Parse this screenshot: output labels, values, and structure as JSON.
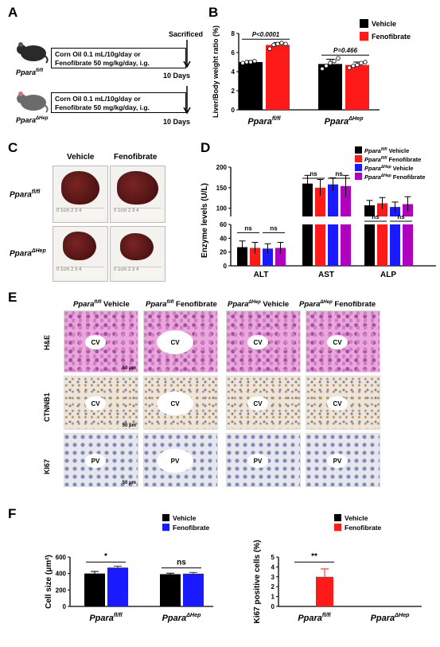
{
  "panels": {
    "A": "A",
    "B": "B",
    "C": "C",
    "D": "D",
    "E": "E",
    "F": "F"
  },
  "panelA": {
    "sacrificed": "Sacrificed",
    "treatment_line1": "Corn Oil 0.1 mL/10g/day or",
    "treatment_line2": "Fenofibrate 50 mg/kg/day, i.g.",
    "days": "10 Days",
    "mouse1": "Ppara",
    "mouse1_sup": "fl/fl",
    "mouse2": "Ppara",
    "mouse2_sup": "ΔHep"
  },
  "colors": {
    "vehicle": "#000000",
    "fenofibrate_red": "#ff1a1a",
    "fenofibrate_blue": "#1a1aff",
    "purple": "#b000c0"
  },
  "chart_data": [
    {
      "id": "B",
      "type": "bar",
      "ylabel": "Liver/Body weight ratio (%)",
      "ylim": [
        0,
        8
      ],
      "yticks": [
        "0",
        "2",
        "4",
        "6",
        "8"
      ],
      "groups": [
        {
          "main": "Ppara",
          "sup": "fl/fl"
        },
        {
          "main": "Ppara",
          "sup": "ΔHep"
        }
      ],
      "series": [
        {
          "name": "Vehicle",
          "color": "#000000",
          "values": [
            5.0,
            4.8
          ],
          "errors": [
            0.15,
            0.5
          ]
        },
        {
          "name": "Fenofibrate",
          "color": "#ff1a1a",
          "values": [
            6.8,
            4.7
          ],
          "errors": [
            0.25,
            0.3
          ]
        }
      ],
      "points": [
        [
          [
            4.9,
            5.0,
            5.0,
            5.1
          ],
          [
            6.4,
            6.8,
            6.9,
            7.0,
            6.9
          ]
        ],
        [
          [
            4.3,
            4.6,
            4.9,
            5.1,
            5.4
          ],
          [
            4.4,
            4.6,
            4.7,
            4.9,
            5.0
          ]
        ]
      ],
      "pvalues": [
        "P<0.0001",
        "P=0.466"
      ]
    },
    {
      "id": "D",
      "type": "bar",
      "ylabel": "Enzyme levels (U/L)",
      "yticks_upper": [
        "100",
        "150",
        "200"
      ],
      "yticks_lower": [
        "0",
        "20",
        "40",
        "60"
      ],
      "categories": [
        "ALT",
        "AST",
        "ALP"
      ],
      "series": [
        {
          "name_main": "Ppara",
          "name_sup": "fl/fl",
          "name_rest": " Vehicle",
          "color": "#000000",
          "values": [
            27,
            160,
            107
          ],
          "errors": [
            9,
            20,
            12
          ]
        },
        {
          "name_main": "Ppara",
          "name_sup": "fl/fl",
          "name_rest": " Fenofibrate",
          "color": "#ff1a1a",
          "values": [
            26,
            150,
            112
          ],
          "errors": [
            8,
            20,
            14
          ]
        },
        {
          "name_main": "Ppara",
          "name_sup": "ΔHep",
          "name_rest": " Vehicle",
          "color": "#1a1aff",
          "values": [
            25,
            158,
            103
          ],
          "errors": [
            7,
            16,
            12
          ]
        },
        {
          "name_main": "Ppara",
          "name_sup": "ΔHep",
          "name_rest": " Fenofibrate",
          "color": "#b000c0",
          "values": [
            26,
            154,
            110
          ],
          "errors": [
            8,
            26,
            18
          ]
        }
      ],
      "ns": [
        "ns",
        "ns",
        "ns",
        "ns",
        "ns",
        "ns"
      ]
    },
    {
      "id": "F1",
      "type": "bar",
      "ylabel": "Cell size (μm²)",
      "ylim": [
        0,
        600
      ],
      "yticks": [
        "0",
        "200",
        "400",
        "600"
      ],
      "groups": [
        {
          "main": "Ppara",
          "sup": "fl/fl"
        },
        {
          "main": "Ppara",
          "sup": "ΔHep"
        }
      ],
      "series": [
        {
          "name": "Vehicle",
          "color": "#000000",
          "values": [
            400,
            392
          ],
          "errors": [
            25,
            12
          ]
        },
        {
          "name": "Fenofibrate",
          "color": "#1a1aff",
          "values": [
            472,
            398
          ],
          "errors": [
            18,
            15
          ]
        }
      ],
      "sig": [
        "*",
        "ns"
      ]
    },
    {
      "id": "F2",
      "type": "bar",
      "ylabel": "Ki67 positive cells (%)",
      "ylim": [
        0,
        5
      ],
      "yticks": [
        "0",
        "1",
        "2",
        "3",
        "4",
        "5"
      ],
      "groups": [
        {
          "main": "Ppara",
          "sup": "fl/fl"
        },
        {
          "main": "Ppara",
          "sup": "ΔHep"
        }
      ],
      "series": [
        {
          "name": "Vehicle",
          "color": "#000000",
          "values": [
            0,
            0
          ],
          "errors": [
            0,
            0
          ]
        },
        {
          "name": "Fenofibrate",
          "color": "#ff1a1a",
          "values": [
            3.0,
            0
          ],
          "errors": [
            0.8,
            0
          ]
        }
      ],
      "sig": [
        "**"
      ]
    }
  ],
  "panelC": {
    "cols": [
      "Vehicle",
      "Fenofibrate"
    ],
    "row1": {
      "main": "Ppara",
      "sup": "fl/fl"
    },
    "row2": {
      "main": "Ppara",
      "sup": "ΔHep"
    },
    "ruler_text": "0 1cm 2 3 4"
  },
  "panelE": {
    "headers": [
      {
        "main": "Ppara",
        "sup": "fl/fl",
        "rest": " Vehicle"
      },
      {
        "main": "Ppara",
        "sup": "fl/fl",
        "rest": " Fenofibrate"
      },
      {
        "main": "Ppara",
        "sup": "ΔHep",
        "rest": " Vehicle"
      },
      {
        "main": "Ppara",
        "sup": "ΔHep",
        "rest": " Fenofibrate"
      }
    ],
    "rows": [
      "H&E",
      "CTNNB1",
      "KI67"
    ],
    "cv": "CV",
    "pv": "PV",
    "scale": "50 μm"
  }
}
